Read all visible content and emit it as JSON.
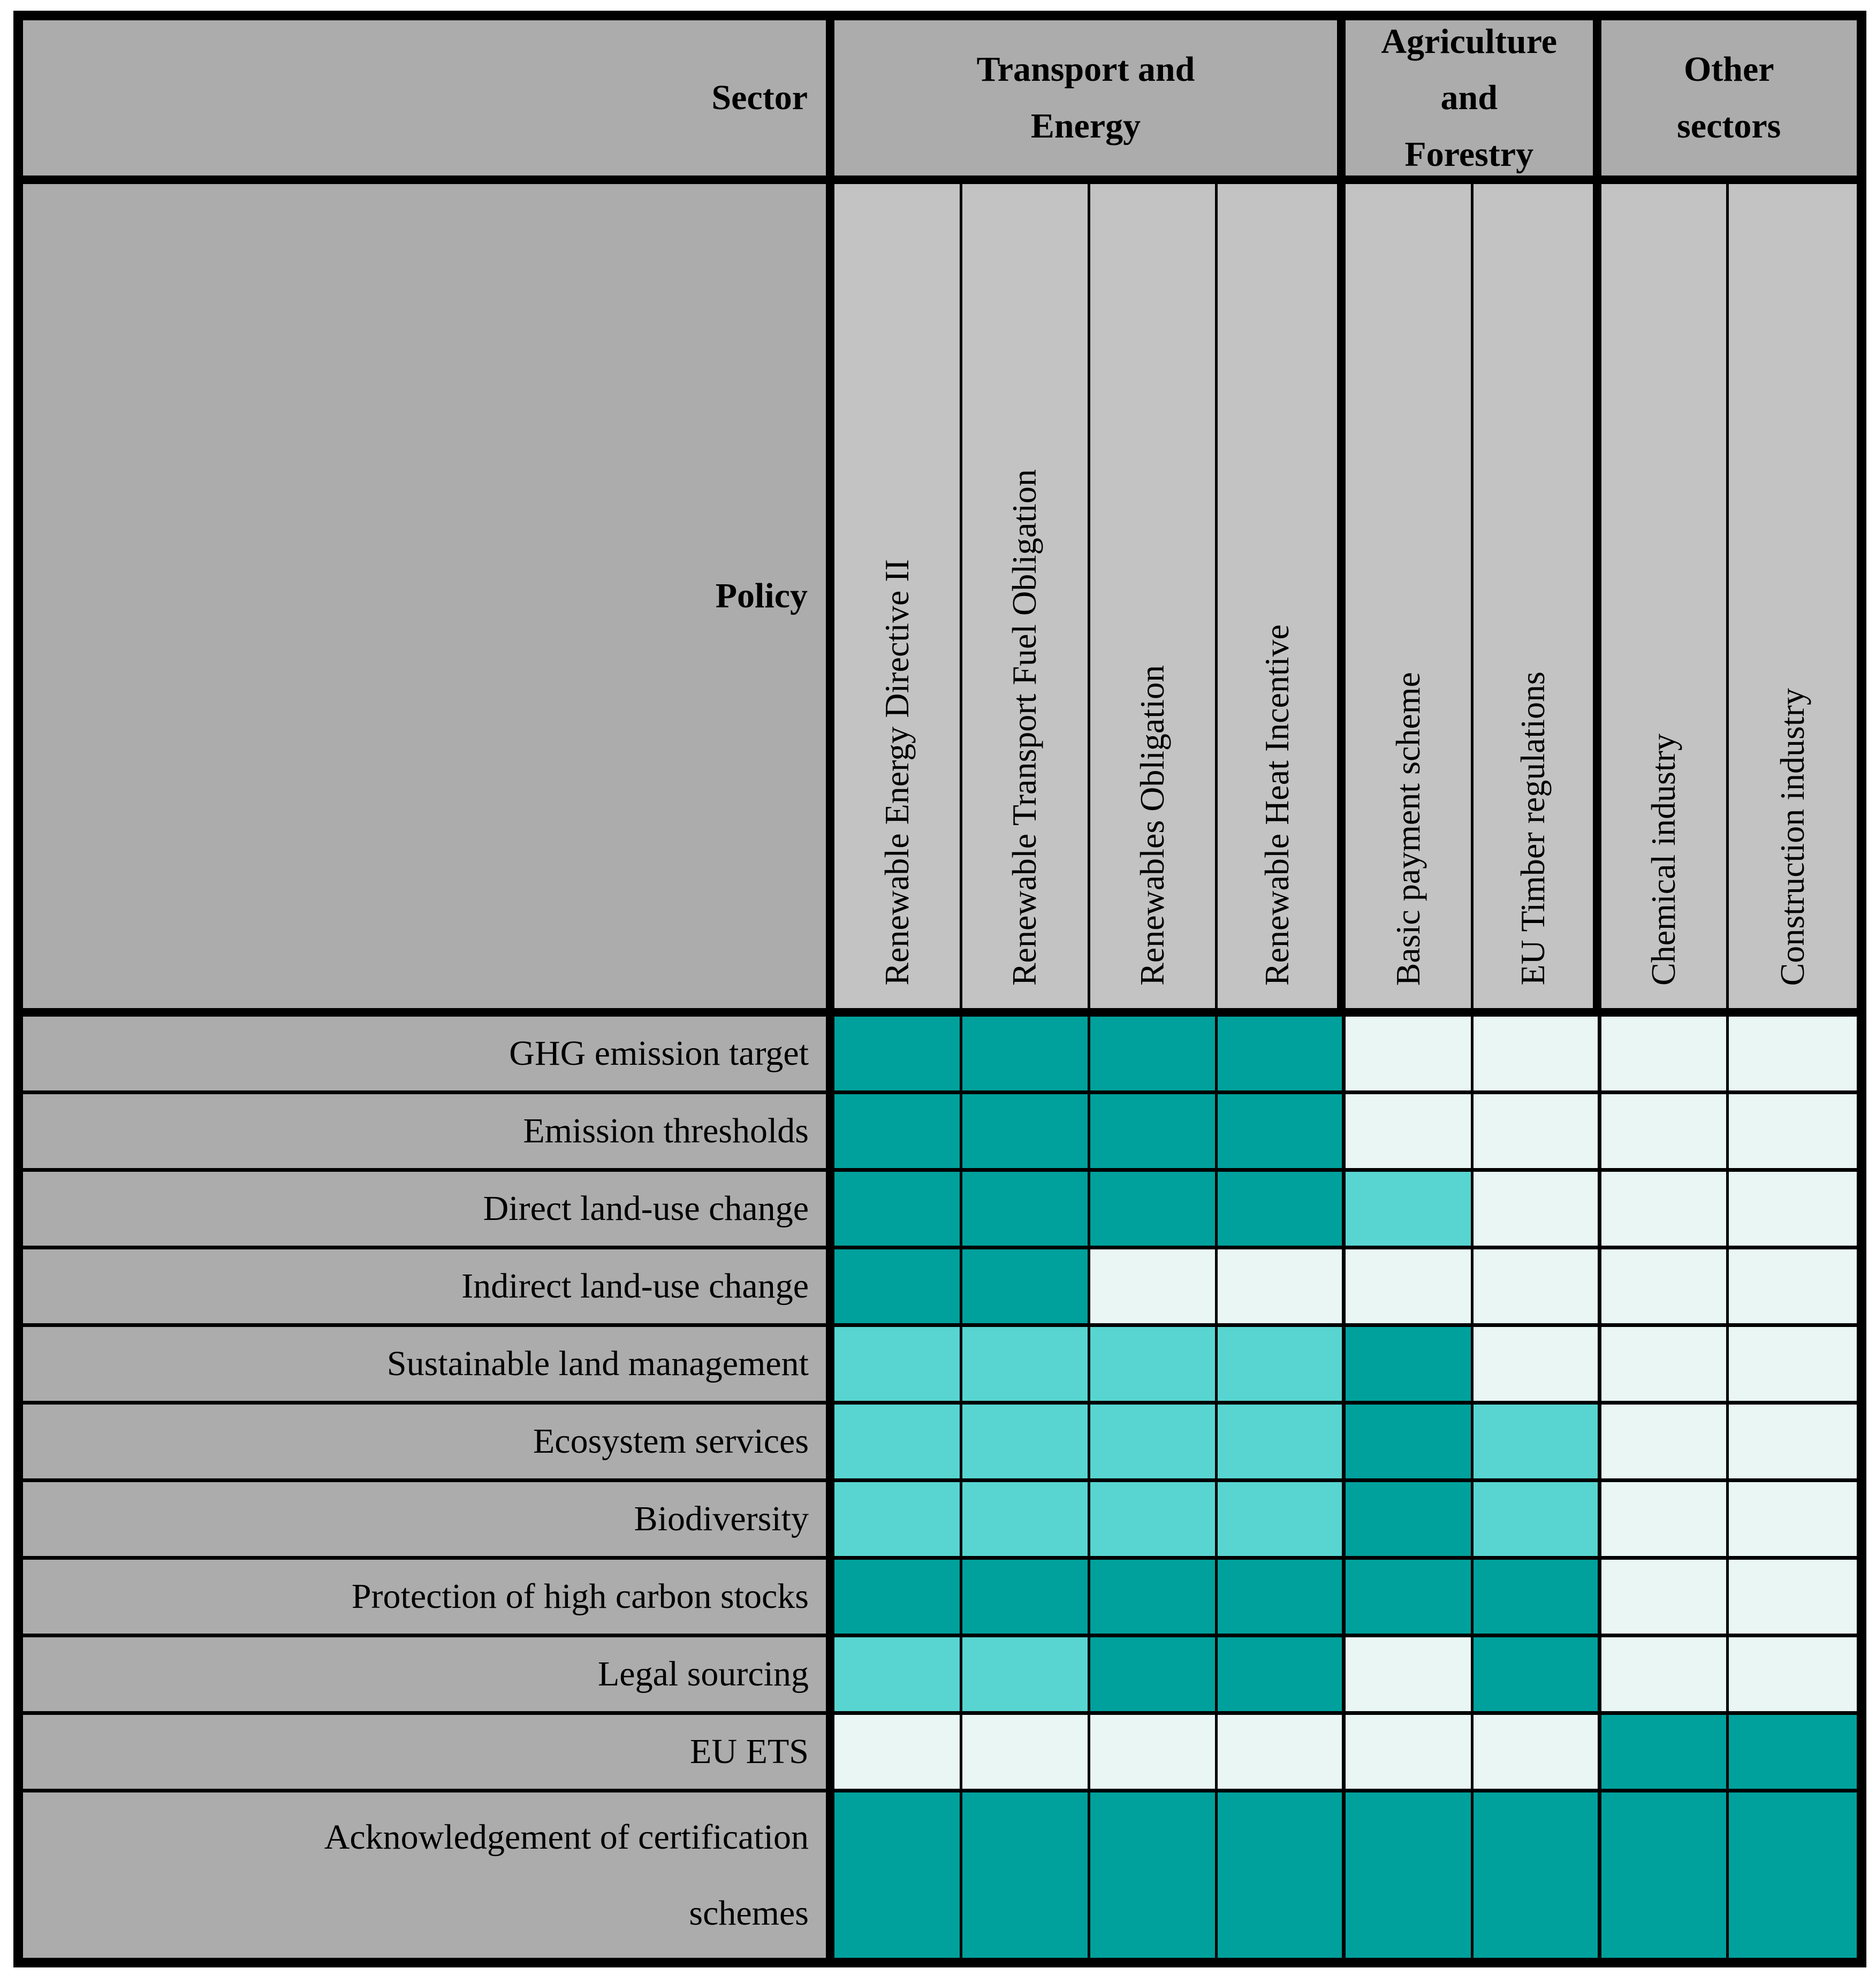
{
  "colors": {
    "border": "#000000",
    "header_grey": "#acacac",
    "policy_grey": "#c3c3c3",
    "page_bg": "#ffffff"
  },
  "table": {
    "corner": {
      "sector": "Sector",
      "policy": "Policy"
    },
    "sector_groups": [
      {
        "label": "Transport and\nEnergy",
        "span": 4
      },
      {
        "label": "Agriculture\nand\nForestry",
        "span": 2
      },
      {
        "label": "Other\nsectors",
        "span": 2
      }
    ]
  },
  "chart_data": {
    "type": "heatmap",
    "x_groups": [
      "Transport and Energy",
      "Agriculture and Forestry",
      "Other sectors"
    ],
    "x_labels": [
      "Renewable Energy Directive II",
      "Renewable Transport Fuel Obligation",
      "Renewables Obligation",
      "Renewable Heat Incentive",
      "Basic payment scheme",
      "EU Timber regulations",
      "Chemical industry",
      "Construction industry"
    ],
    "y_labels": [
      "GHG emission target",
      "Emission thresholds",
      "Direct land-use change",
      "Indirect land-use change",
      "Sustainable land management",
      "Ecosystem services",
      "Biodiversity",
      "Protection of high carbon stocks",
      "Legal sourcing",
      "EU ETS",
      "Acknowledgement of certification\nschemes"
    ],
    "values": [
      [
        2,
        2,
        2,
        2,
        0,
        0,
        0,
        0
      ],
      [
        2,
        2,
        2,
        2,
        0,
        0,
        0,
        0
      ],
      [
        2,
        2,
        2,
        2,
        1,
        0,
        0,
        0
      ],
      [
        2,
        2,
        0,
        0,
        0,
        0,
        0,
        0
      ],
      [
        1,
        1,
        1,
        1,
        2,
        0,
        0,
        0
      ],
      [
        1,
        1,
        1,
        1,
        2,
        1,
        0,
        0
      ],
      [
        1,
        1,
        1,
        1,
        2,
        1,
        0,
        0
      ],
      [
        2,
        2,
        2,
        2,
        2,
        2,
        0,
        0
      ],
      [
        1,
        1,
        2,
        2,
        0,
        2,
        0,
        0
      ],
      [
        0,
        0,
        0,
        0,
        0,
        0,
        2,
        2
      ],
      [
        2,
        2,
        2,
        2,
        2,
        2,
        2,
        2
      ]
    ],
    "value_colors": {
      "0": "#e9f6f4",
      "1": "#58d5d1",
      "2": "#00a19c"
    },
    "legend_position": "none",
    "grid": true
  }
}
